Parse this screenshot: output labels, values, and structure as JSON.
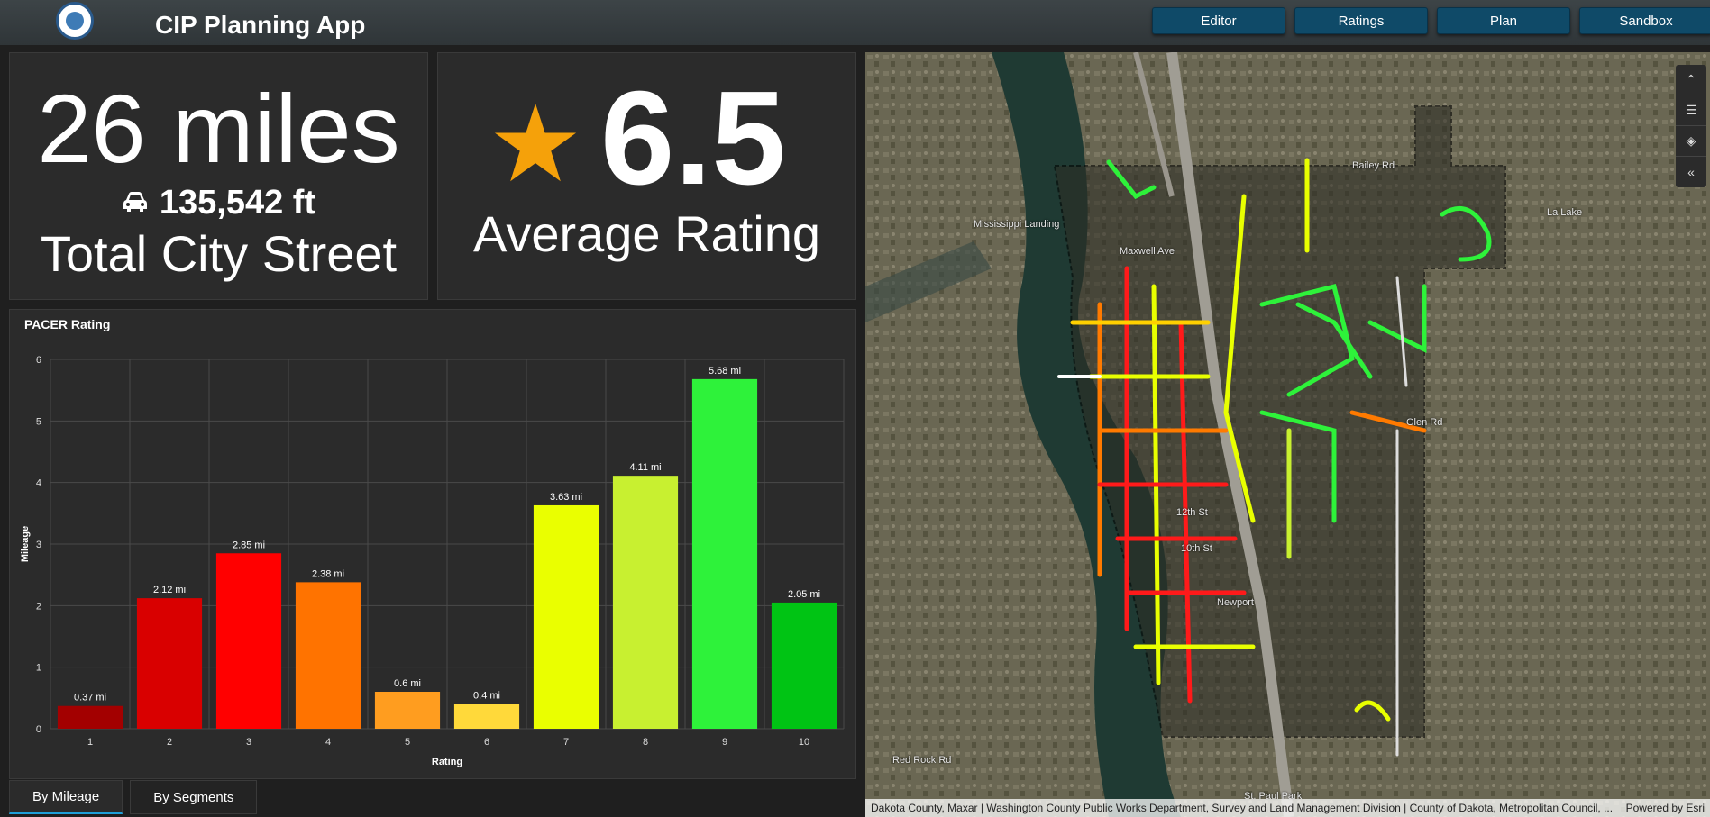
{
  "header": {
    "title": "CIP Planning App",
    "nav": [
      "Editor",
      "Ratings",
      "Plan",
      "Sandbox"
    ]
  },
  "stats": {
    "miles": "26 miles",
    "feet": "135,542 ft",
    "miles_label": "Total City Street",
    "rating": "6.5",
    "rating_label": "Average Rating"
  },
  "chart_data": {
    "type": "bar",
    "title": "PACER Rating",
    "xlabel": "Rating",
    "ylabel": "Mileage",
    "ylim": [
      0,
      6
    ],
    "yticks": [
      0,
      1,
      2,
      3,
      4,
      5,
      6
    ],
    "categories": [
      "1",
      "2",
      "3",
      "4",
      "5",
      "6",
      "7",
      "8",
      "9",
      "10"
    ],
    "values": [
      0.37,
      2.12,
      2.85,
      2.38,
      0.6,
      0.4,
      3.63,
      4.11,
      5.68,
      2.05
    ],
    "labels": [
      "0.37 mi",
      "2.12 mi",
      "2.85 mi",
      "2.38 mi",
      "0.6 mi",
      "0.4 mi",
      "3.63 mi",
      "4.11 mi",
      "5.68 mi",
      "2.05 mi"
    ],
    "colors": [
      "#a30000",
      "#d90000",
      "#ff0000",
      "#ff7300",
      "#ff9d1f",
      "#ffd93a",
      "#eaff00",
      "#c8f030",
      "#2ef23a",
      "#00c414"
    ],
    "grid": true
  },
  "tabs": [
    "By Mileage",
    "By Segments"
  ],
  "map": {
    "attribution": "Dakota County, Maxar | Washington County Public Works Department, Survey and Land Management Division | County of Dakota, Metropolitan Council, ...",
    "powered": "Powered by Esri",
    "labels": [
      "Bailey Rd",
      "Glen Rd",
      "Newport",
      "12th St",
      "10th St",
      "La Lake",
      "St. Paul Park",
      "Mississippi Landing",
      "Red Rock Rd",
      "Maxwell Ave"
    ]
  }
}
